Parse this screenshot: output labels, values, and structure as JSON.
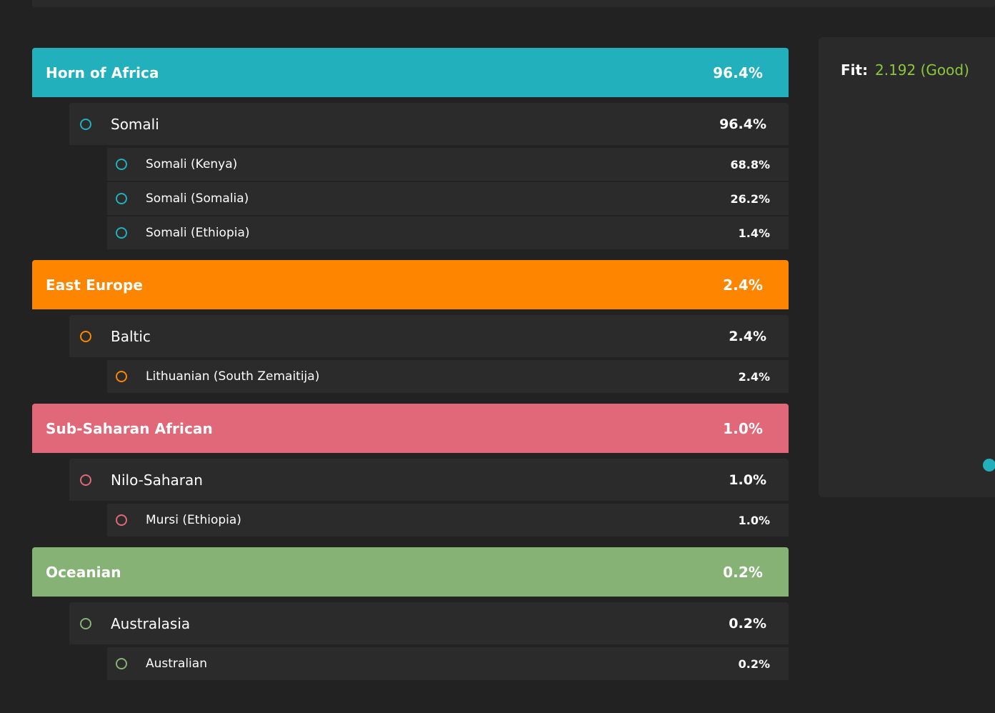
{
  "fit": {
    "label": "Fit:",
    "value": "2.192 (Good)",
    "value_color": "#8cc63f"
  },
  "regions": [
    {
      "name": "Horn of Africa",
      "pct": "96.4%",
      "color": "#22b0bd",
      "populations": [
        {
          "name": "Somali",
          "pct": "96.4%",
          "subs": [
            {
              "name": "Somali (Kenya)",
              "pct": "68.8%"
            },
            {
              "name": "Somali (Somalia)",
              "pct": "26.2%"
            },
            {
              "name": "Somali (Ethiopia)",
              "pct": "1.4%"
            }
          ]
        }
      ]
    },
    {
      "name": "East Europe",
      "pct": "2.4%",
      "color": "#fd8500",
      "populations": [
        {
          "name": "Baltic",
          "pct": "2.4%",
          "subs": [
            {
              "name": "Lithuanian (South Zemaitija)",
              "pct": "2.4%"
            }
          ]
        }
      ]
    },
    {
      "name": "Sub-Saharan African",
      "pct": "1.0%",
      "color": "#e06878",
      "populations": [
        {
          "name": "Nilo-Saharan",
          "pct": "1.0%",
          "subs": [
            {
              "name": "Mursi (Ethiopia)",
              "pct": "1.0%"
            }
          ]
        }
      ]
    },
    {
      "name": "Oceanian",
      "pct": "0.2%",
      "color": "#86b275",
      "populations": [
        {
          "name": "Australasia",
          "pct": "0.2%",
          "subs": [
            {
              "name": "Australian",
              "pct": "0.2%"
            }
          ]
        }
      ]
    }
  ]
}
